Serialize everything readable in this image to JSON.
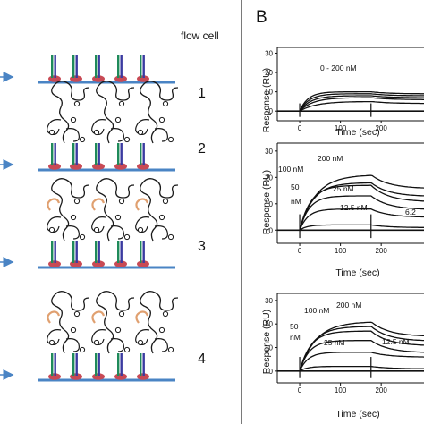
{
  "panel_letter": "B",
  "flow_cell_header": "flow cell",
  "flow_cells": [
    "1",
    "2",
    "3",
    "4"
  ],
  "chart_data": [
    {
      "type": "line",
      "ylabel": "Response (RU)",
      "xlabel": "Time (sec)",
      "yticks": [
        "30",
        "20",
        "10",
        "0"
      ],
      "xticks": [
        "0",
        "100",
        "200"
      ],
      "ylim": [
        -5,
        33
      ],
      "xlim": [
        -55,
        305
      ],
      "annotations": [
        "0 - 200 nM"
      ],
      "series": [
        {
          "x": [
            0,
            175,
            305
          ],
          "values": [
            5,
            5,
            4
          ]
        },
        {
          "x": [
            0,
            175,
            305
          ],
          "values": [
            7,
            7,
            6
          ]
        },
        {
          "x": [
            0,
            175,
            305
          ],
          "values": [
            8,
            8,
            7
          ]
        },
        {
          "x": [
            0,
            175,
            305
          ],
          "values": [
            9,
            9,
            8
          ]
        },
        {
          "x": [
            0,
            175,
            305
          ],
          "values": [
            10,
            10,
            9
          ]
        }
      ]
    },
    {
      "type": "line",
      "ylabel": "Response (RU)",
      "xlabel": "Time (sec)",
      "yticks": [
        "30",
        "20",
        "10",
        "0"
      ],
      "xticks": [
        "0",
        "100",
        "200"
      ],
      "ylim": [
        -5,
        33
      ],
      "xlim": [
        -55,
        305
      ],
      "annotations": [
        "200 nM",
        "100 nM",
        "50",
        "nM",
        "25 nM",
        "12.5 nM",
        "6.2"
      ],
      "series": [
        {
          "x": [
            0,
            175,
            305
          ],
          "values": [
            21,
            21,
            16
          ]
        },
        {
          "x": [
            0,
            175,
            305
          ],
          "values": [
            18,
            18,
            13
          ]
        },
        {
          "x": [
            0,
            175,
            305
          ],
          "values": [
            16,
            17,
            11
          ]
        },
        {
          "x": [
            0,
            175,
            305
          ],
          "values": [
            11,
            13,
            8
          ]
        },
        {
          "x": [
            0,
            175,
            305
          ],
          "values": [
            5,
            8,
            5
          ]
        },
        {
          "x": [
            0,
            175,
            305
          ],
          "values": [
            1,
            2,
            1
          ]
        }
      ]
    },
    {
      "type": "line",
      "ylabel": "Response (RU)",
      "xlabel": "Time (sec)",
      "yticks": [
        "30",
        "20",
        "10",
        "0"
      ],
      "xticks": [
        "0",
        "100",
        "200"
      ],
      "ylim": [
        -5,
        33
      ],
      "xlim": [
        -55,
        305
      ],
      "annotations": [
        "100 nM",
        "200 nM",
        "50",
        "nM",
        "25 nM",
        "12.5 nM"
      ],
      "series": [
        {
          "x": [
            0,
            175,
            305
          ],
          "values": [
            21,
            21,
            15
          ]
        },
        {
          "x": [
            0,
            175,
            305
          ],
          "values": [
            19,
            19,
            13
          ]
        },
        {
          "x": [
            0,
            175,
            305
          ],
          "values": [
            16,
            17,
            11
          ]
        },
        {
          "x": [
            0,
            175,
            305
          ],
          "values": [
            12,
            13,
            8
          ]
        },
        {
          "x": [
            0,
            175,
            305
          ],
          "values": [
            6,
            8,
            6
          ]
        },
        {
          "x": [
            0,
            175,
            305
          ],
          "values": [
            1,
            2,
            1
          ]
        }
      ]
    }
  ]
}
